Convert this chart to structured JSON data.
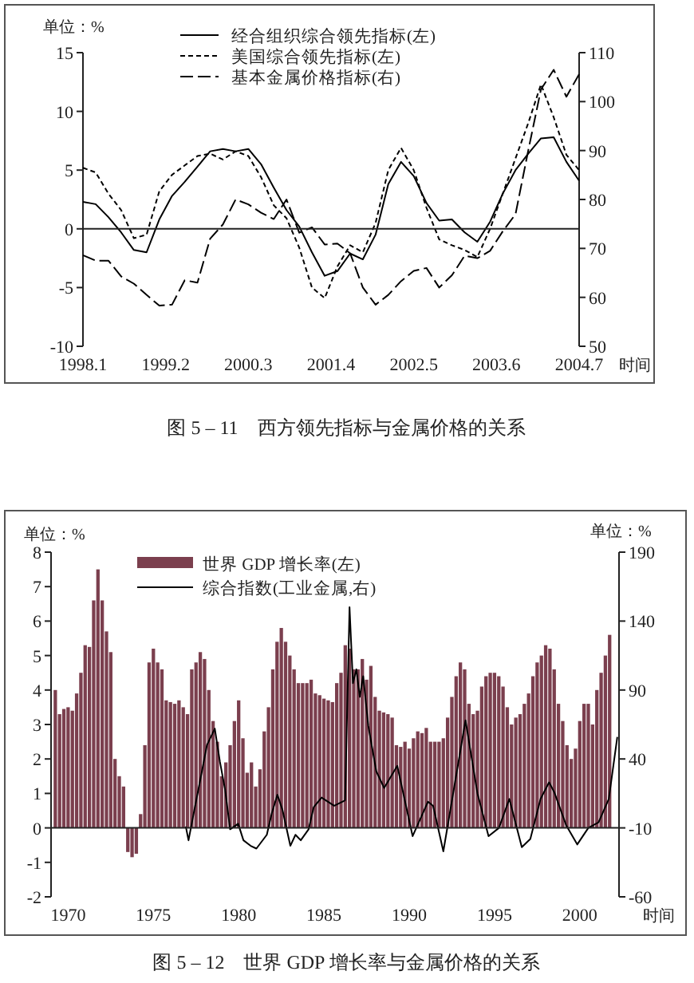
{
  "chart_data": [
    {
      "type": "line",
      "title": "图 5 – 11　西方领先指标与金属价格的关系",
      "ylabel": "单位：%",
      "xlabel": "时间",
      "legend": "top left",
      "x": [
        "1998-01",
        "1998-03",
        "1998-05",
        "1998-07",
        "1998-09",
        "1998-11",
        "1999-01",
        "1999-03",
        "1999-05",
        "1999-07",
        "1999-09",
        "1999-11",
        "2000-01",
        "2000-03",
        "2000-05",
        "2000-07",
        "2000-09",
        "2000-11",
        "2001-01",
        "2001-03",
        "2001-05",
        "2001-07",
        "2001-09",
        "2001-11",
        "2002-01",
        "2002-03",
        "2002-05",
        "2002-07",
        "2002-09",
        "2002-11",
        "2003-01",
        "2003-03",
        "2003-05",
        "2003-07",
        "2003-09",
        "2003-11",
        "2004-01",
        "2004-03",
        "2004-05",
        "2004-07"
      ],
      "series": [
        {
          "name": "经合组织综合领先指标(左)",
          "color": "#000000",
          "line_style": "solid",
          "values": [
            2.3,
            2.1,
            1.0,
            -0.3,
            -1.8,
            -2.0,
            0.8,
            2.8,
            4.0,
            5.3,
            6.6,
            6.8,
            6.6,
            6.8,
            5.5,
            3.5,
            1.6,
            0.2,
            -2.0,
            -4.0,
            -3.6,
            -2.1,
            -2.6,
            -0.5,
            3.8,
            5.7,
            4.5,
            2.2,
            0.7,
            0.8,
            -0.3,
            -1.1,
            0.6,
            3.0,
            5.0,
            6.4,
            7.7,
            7.8,
            5.7,
            4.1
          ]
        },
        {
          "name": "美国综合领先指标(左)",
          "color": "#000000",
          "line_style": "dotted",
          "values": [
            5.2,
            4.8,
            3.0,
            1.6,
            -0.8,
            -0.5,
            3.2,
            4.6,
            5.4,
            6.2,
            6.4,
            5.9,
            6.6,
            6.2,
            4.4,
            2.0,
            0.9,
            -1.6,
            -5.0,
            -5.9,
            -3.2,
            -1.4,
            -2.0,
            0.5,
            5.0,
            6.9,
            5.0,
            1.8,
            -0.9,
            -1.4,
            -1.8,
            -2.4,
            0,
            3.0,
            6.0,
            9.0,
            12.3,
            9.5,
            6.3,
            5.0
          ]
        },
        {
          "name": "基本金属价格指标(右)",
          "color": "#000000",
          "line_style": "dashed",
          "axis": "y2",
          "values": [
            68.6,
            67.5,
            67.5,
            64.3,
            62.8,
            60.5,
            58.3,
            58.5,
            63.5,
            63.0,
            72.0,
            74.9,
            80.0,
            79.0,
            77.3,
            76.0,
            80.0,
            73.2,
            74.3,
            70.8,
            71.0,
            69.0,
            62.0,
            58.5,
            60.5,
            63.3,
            65.4,
            66.0,
            62.0,
            64.5,
            68.5,
            68.0,
            69.5,
            73.5,
            77.0,
            90.0,
            102.5,
            106.5,
            101.0,
            105.6
          ]
        }
      ],
      "xlim": [
        "1998-01",
        "2004-07"
      ],
      "xticks": [
        {
          "value": "1998-01",
          "label": "1998.1"
        },
        {
          "value": "1999-02",
          "label": "1999.2"
        },
        {
          "value": "2000-03",
          "label": "2000.3"
        },
        {
          "value": "2001-04",
          "label": "2001.4"
        },
        {
          "value": "2002-05",
          "label": "2002.5"
        },
        {
          "value": "2003-06",
          "label": "2003.6"
        },
        {
          "value": "2004-07",
          "label": "2004.7"
        }
      ],
      "ylim": [
        -10,
        15
      ],
      "yticks": [
        -10,
        -5,
        0,
        5,
        10,
        15
      ],
      "y2lim": [
        50,
        110
      ],
      "y2ticks": [
        50,
        60,
        70,
        80,
        90,
        100,
        110
      ],
      "ref_lines": [
        {
          "axis": "y",
          "value": 0
        }
      ]
    },
    {
      "type": "bar",
      "title": "图 5 – 12　世界 GDP 增长率与金属价格的关系",
      "ylabel": "单位：%",
      "y2label": "单位：%",
      "xlabel": "时间",
      "legend": "top left",
      "series": [
        {
          "name": "世界 GDP 增长率(左)",
          "color": "#7b3f4e",
          "x": [
            1969.25,
            1969.5,
            1969.75,
            1970,
            1970.25,
            1970.5,
            1970.75,
            1971,
            1971.25,
            1971.5,
            1971.75,
            1972,
            1972.25,
            1972.5,
            1972.75,
            1973,
            1973.25,
            1973.5,
            1973.75,
            1974,
            1974.25,
            1974.5,
            1974.75,
            1975,
            1975.25,
            1975.5,
            1975.75,
            1976,
            1976.25,
            1976.5,
            1976.75,
            1977,
            1977.25,
            1977.5,
            1977.75,
            1978,
            1978.25,
            1978.5,
            1978.75,
            1979,
            1979.25,
            1979.5,
            1979.75,
            1980,
            1980.25,
            1980.5,
            1980.75,
            1981,
            1981.25,
            1981.5,
            1981.75,
            1982,
            1982.25,
            1982.5,
            1982.75,
            1983,
            1983.25,
            1983.5,
            1983.75,
            1984,
            1984.25,
            1984.5,
            1984.75,
            1985,
            1985.25,
            1985.5,
            1985.75,
            1986,
            1986.25,
            1986.5,
            1986.75,
            1987,
            1987.25,
            1987.5,
            1987.75,
            1988,
            1988.25,
            1988.5,
            1988.75,
            1989,
            1989.25,
            1989.5,
            1989.75,
            1990,
            1990.25,
            1990.5,
            1990.75,
            1991,
            1991.25,
            1991.5,
            1991.75,
            1992,
            1992.25,
            1992.5,
            1992.75,
            1993,
            1993.25,
            1993.5,
            1993.75,
            1994,
            1994.25,
            1994.5,
            1994.75,
            1995,
            1995.25,
            1995.5,
            1995.75,
            1996,
            1996.25,
            1996.5,
            1996.75,
            1997,
            1997.25,
            1997.5,
            1997.75,
            1998,
            1998.25,
            1998.5,
            1998.75,
            1999,
            1999.25,
            1999.5,
            1999.75,
            2000,
            2000.25,
            2000.5,
            2000.75,
            2001,
            2001.25,
            2001.5,
            2001.75
          ],
          "values": [
            4.0,
            3.3,
            3.45,
            3.5,
            3.4,
            3.9,
            4.5,
            5.3,
            5.25,
            6.6,
            7.5,
            6.6,
            5.7,
            5.1,
            2.0,
            1.5,
            1.2,
            -0.7,
            -0.85,
            -0.75,
            0.4,
            2.4,
            4.8,
            5.2,
            4.8,
            4.6,
            3.7,
            3.65,
            3.6,
            3.7,
            3.5,
            3.3,
            4.6,
            4.8,
            5.1,
            4.9,
            4.0,
            3.1,
            2.5,
            1.5,
            1.9,
            2.4,
            3.1,
            3.7,
            2.6,
            1.6,
            1.9,
            1.2,
            1.7,
            2.8,
            3.5,
            4.6,
            5.4,
            5.8,
            5.4,
            5.0,
            4.6,
            4.2,
            4.2,
            4.2,
            4.3,
            3.9,
            3.85,
            3.75,
            3.7,
            3.65,
            4.2,
            4.5,
            5.3,
            5.2,
            4.6,
            4.6,
            4.9,
            4.3,
            4.7,
            3.8,
            3.4,
            3.35,
            3.3,
            3.2,
            2.4,
            2.35,
            2.5,
            2.3,
            2.6,
            2.8,
            2.75,
            2.9,
            2.5,
            2.5,
            2.5,
            2.6,
            3.2,
            3.8,
            4.4,
            4.8,
            4.6,
            3.6,
            3.3,
            3.4,
            4.1,
            4.4,
            4.5,
            4.5,
            4.4,
            4.1,
            3.5,
            3.0,
            3.2,
            3.3,
            3.6,
            3.9,
            4.4,
            4.8,
            5.0,
            5.3,
            5.2,
            4.6,
            3.6,
            3.1,
            2.4,
            2.0,
            2.3,
            3.1,
            3.6,
            3.6,
            3.0,
            4.0,
            4.5,
            5.0,
            5.6
          ]
        },
        {
          "name": "综合指数(工业金属,右)",
          "type": "line",
          "axis": "y2",
          "color": "#000000",
          "line_style": "solid",
          "x": [
            1976.9,
            1977.06,
            1977.37,
            1977.83,
            1978.14,
            1978.6,
            1978.9,
            1979.2,
            1979.5,
            1979.97,
            1980.28,
            1980.7,
            1981.04,
            1981.65,
            1981.95,
            1982.27,
            1982.57,
            1983.03,
            1983.33,
            1983.64,
            1984.1,
            1984.4,
            1984.86,
            1985.6,
            1986.24,
            1986.5,
            1986.7,
            1986.9,
            1987.1,
            1987.3,
            1987.6,
            1988.07,
            1988.53,
            1989.3,
            1990.2,
            1991.1,
            1991.4,
            1992.0,
            1993.3,
            1994.0,
            1994.65,
            1995.26,
            1995.87,
            1996.6,
            1997.1,
            1997.7,
            1998.2,
            1998.5,
            1999.2,
            1999.85,
            2000.5,
            2001.1,
            2001.7,
            2002.2
          ],
          "values": [
            -9,
            -19,
            1,
            30,
            50,
            62,
            38,
            18,
            -11,
            -7,
            -19,
            -23,
            -25,
            -15,
            1,
            14,
            3,
            -23,
            -15,
            -19,
            -11,
            5,
            12,
            6,
            10,
            150,
            95,
            105,
            85,
            100,
            64,
            31,
            19,
            35,
            -16,
            9,
            6,
            -27,
            68,
            15,
            -16,
            -10,
            11,
            -24,
            -18,
            11,
            23,
            16,
            -8,
            -22,
            -10,
            -6,
            11,
            56
          ]
        }
      ],
      "xlim": [
        1969,
        2002.3
      ],
      "xticks": [
        1970,
        1975,
        1980,
        1985,
        1990,
        1995,
        2000
      ],
      "ylim": [
        -2,
        8
      ],
      "yticks": [
        -2,
        -1,
        0,
        1,
        2,
        3,
        4,
        5,
        6,
        7,
        8
      ],
      "y2lim": [
        -60,
        190
      ],
      "y2ticks": [
        -60,
        -10,
        40,
        90,
        140,
        190
      ],
      "ref_lines": [
        {
          "axis": "y",
          "value": 0
        }
      ]
    }
  ]
}
